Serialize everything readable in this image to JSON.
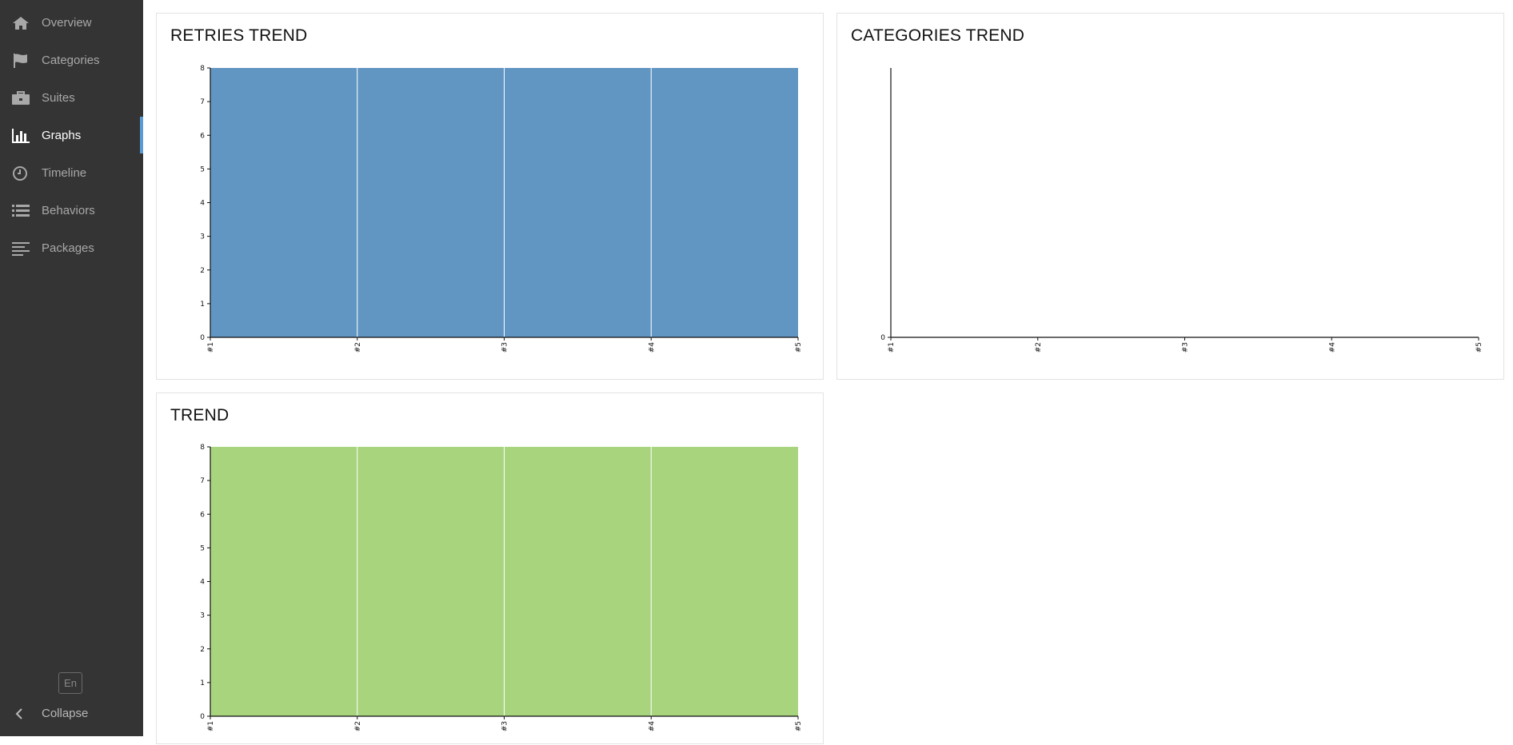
{
  "sidebar": {
    "items": [
      {
        "label": "Overview",
        "icon": "home-icon",
        "active": false
      },
      {
        "label": "Categories",
        "icon": "flag-icon",
        "active": false
      },
      {
        "label": "Suites",
        "icon": "briefcase-icon",
        "active": false
      },
      {
        "label": "Graphs",
        "icon": "bar-chart-icon",
        "active": true
      },
      {
        "label": "Timeline",
        "icon": "clock-icon",
        "active": false
      },
      {
        "label": "Behaviors",
        "icon": "list-icon",
        "active": false
      },
      {
        "label": "Packages",
        "icon": "align-left-icon",
        "active": false
      }
    ],
    "language": "En",
    "collapse_label": "Collapse",
    "active_color": "#5b9bd5"
  },
  "panels": {
    "retries": {
      "title": "RETRIES TREND"
    },
    "categories": {
      "title": "CATEGORIES TREND"
    },
    "trend": {
      "title": "TREND"
    }
  },
  "chart_data": [
    {
      "type": "area",
      "title": "RETRIES TREND",
      "categories": [
        "#1",
        "#2",
        "#3",
        "#4",
        "#5"
      ],
      "series": [
        {
          "values": [
            8,
            8,
            8,
            8,
            8
          ],
          "color": "#6296c2"
        }
      ],
      "yticks": [
        "0",
        "1",
        "2",
        "3",
        "4",
        "5",
        "6",
        "7",
        "8"
      ],
      "ylim": [
        0,
        8
      ],
      "grid": false
    },
    {
      "type": "area",
      "title": "CATEGORIES TREND",
      "categories": [
        "#1",
        "#2",
        "#3",
        "#4",
        "#5"
      ],
      "series": [],
      "yticks": [
        "0"
      ],
      "ylim": [
        0,
        8
      ],
      "grid": false
    },
    {
      "type": "area",
      "title": "TREND",
      "categories": [
        "#1",
        "#2",
        "#3",
        "#4",
        "#5"
      ],
      "series": [
        {
          "values": [
            8,
            8,
            8,
            8,
            8
          ],
          "color": "#a8d47e"
        }
      ],
      "yticks": [
        "0",
        "1",
        "2",
        "3",
        "4",
        "5",
        "6",
        "7",
        "8"
      ],
      "ylim": [
        0,
        8
      ],
      "grid": false
    }
  ]
}
